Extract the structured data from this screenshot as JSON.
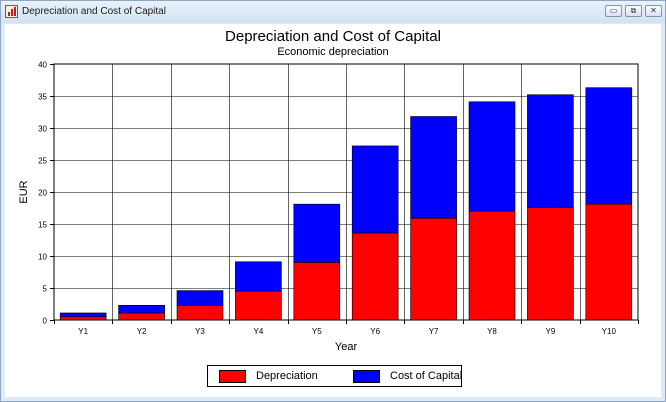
{
  "window": {
    "title": "Depreciation and Cost of Capital",
    "controls": {
      "minimize": "▭",
      "restore": "⧉",
      "close": "✕"
    }
  },
  "chart_data": {
    "type": "bar",
    "stacked": true,
    "title": "Depreciation and Cost of Capital",
    "subtitle": "Economic depreciation",
    "xlabel": "Year",
    "ylabel": "EUR",
    "categories": [
      "Y1",
      "Y2",
      "Y3",
      "Y4",
      "Y5",
      "Y6",
      "Y7",
      "Y8",
      "Y9",
      "Y10"
    ],
    "series": [
      {
        "name": "Depreciation",
        "color": "#ff0000",
        "values": [
          0.5,
          1.1,
          2.3,
          4.5,
          9.0,
          13.6,
          15.9,
          17.0,
          17.6,
          18.1
        ]
      },
      {
        "name": "Cost of Capital",
        "color": "#0000ff",
        "values": [
          0.6,
          1.2,
          2.3,
          4.6,
          9.1,
          13.6,
          15.9,
          17.1,
          17.6,
          18.2
        ]
      }
    ],
    "ylim": [
      0,
      40
    ],
    "yticks": [
      0,
      5,
      10,
      15,
      20,
      25,
      30,
      35,
      40
    ],
    "grid": true,
    "legend_position": "bottom"
  }
}
